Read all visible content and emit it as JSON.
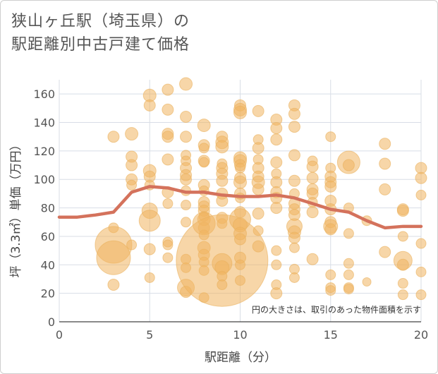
{
  "title_lines": [
    "狭山ヶ丘駅（埼玉県）の",
    "駅距離別中古戸建て価格"
  ],
  "colors": {
    "bubble": "#f0b560",
    "bubble_stroke": "#eab05e",
    "line": "#d4725c",
    "grid": "#d8dde6",
    "axis_text": "#555555"
  },
  "chart_data": {
    "type": "scatter",
    "title": "狭山ヶ丘駅（埼玉県）の駅距離別中古戸建て価格",
    "xlabel": "駅距離（分）",
    "ylabel": "坪（3.3㎡）単価（万円）",
    "xlim": [
      0,
      20
    ],
    "ylim": [
      0,
      170
    ],
    "xticks": [
      0,
      5,
      10,
      15,
      20
    ],
    "yticks": [
      0,
      20,
      40,
      60,
      80,
      100,
      120,
      140,
      160
    ],
    "grid": true,
    "note": "円の大きさは、取引のあった物件面積を示す",
    "bubbles": [
      {
        "x": 3,
        "y": 130,
        "s": 8
      },
      {
        "x": 3,
        "y": 66,
        "s": 7
      },
      {
        "x": 3,
        "y": 54,
        "s": 26
      },
      {
        "x": 3,
        "y": 45,
        "s": 24
      },
      {
        "x": 3,
        "y": 26,
        "s": 8
      },
      {
        "x": 4,
        "y": 132,
        "s": 9
      },
      {
        "x": 4,
        "y": 116,
        "s": 8
      },
      {
        "x": 4,
        "y": 110,
        "s": 8
      },
      {
        "x": 4,
        "y": 100,
        "s": 8
      },
      {
        "x": 4,
        "y": 96,
        "s": 7
      },
      {
        "x": 4,
        "y": 54,
        "s": 7
      },
      {
        "x": 5,
        "y": 159,
        "s": 9
      },
      {
        "x": 5,
        "y": 152,
        "s": 8
      },
      {
        "x": 5,
        "y": 106,
        "s": 9
      },
      {
        "x": 5,
        "y": 102,
        "s": 8
      },
      {
        "x": 5,
        "y": 96,
        "s": 7
      },
      {
        "x": 5,
        "y": 78,
        "s": 11
      },
      {
        "x": 5,
        "y": 71,
        "s": 15
      },
      {
        "x": 5,
        "y": 51,
        "s": 8
      },
      {
        "x": 5,
        "y": 31,
        "s": 7
      },
      {
        "x": 6,
        "y": 163,
        "s": 8
      },
      {
        "x": 6,
        "y": 149,
        "s": 8
      },
      {
        "x": 6,
        "y": 132,
        "s": 8
      },
      {
        "x": 6,
        "y": 130,
        "s": 8
      },
      {
        "x": 6,
        "y": 114,
        "s": 8
      },
      {
        "x": 6,
        "y": 91,
        "s": 8
      },
      {
        "x": 6,
        "y": 83,
        "s": 7
      },
      {
        "x": 6,
        "y": 56,
        "s": 7
      },
      {
        "x": 6,
        "y": 54,
        "s": 7
      },
      {
        "x": 6,
        "y": 45,
        "s": 7
      },
      {
        "x": 7,
        "y": 167,
        "s": 9
      },
      {
        "x": 7,
        "y": 144,
        "s": 8
      },
      {
        "x": 7,
        "y": 130,
        "s": 8
      },
      {
        "x": 7,
        "y": 117,
        "s": 7
      },
      {
        "x": 7,
        "y": 113,
        "s": 7
      },
      {
        "x": 7,
        "y": 108,
        "s": 8
      },
      {
        "x": 7,
        "y": 103,
        "s": 8
      },
      {
        "x": 7,
        "y": 100,
        "s": 8
      },
      {
        "x": 7,
        "y": 92,
        "s": 7
      },
      {
        "x": 7,
        "y": 82,
        "s": 7
      },
      {
        "x": 7,
        "y": 70,
        "s": 7
      },
      {
        "x": 7,
        "y": 44,
        "s": 7
      },
      {
        "x": 7,
        "y": 38,
        "s": 7
      },
      {
        "x": 7,
        "y": 24,
        "s": 12
      },
      {
        "x": 7,
        "y": 21,
        "s": 8
      },
      {
        "x": 8,
        "y": 138,
        "s": 9
      },
      {
        "x": 8,
        "y": 124,
        "s": 8
      },
      {
        "x": 8,
        "y": 122,
        "s": 7
      },
      {
        "x": 8,
        "y": 113,
        "s": 8
      },
      {
        "x": 8,
        "y": 112,
        "s": 7
      },
      {
        "x": 8,
        "y": 96,
        "s": 8
      },
      {
        "x": 8,
        "y": 92,
        "s": 7
      },
      {
        "x": 8,
        "y": 84,
        "s": 8
      },
      {
        "x": 8,
        "y": 81,
        "s": 8
      },
      {
        "x": 8,
        "y": 78,
        "s": 8
      },
      {
        "x": 8,
        "y": 74,
        "s": 7
      },
      {
        "x": 8,
        "y": 72,
        "s": 9
      },
      {
        "x": 8,
        "y": 69,
        "s": 16
      },
      {
        "x": 8,
        "y": 66,
        "s": 8
      },
      {
        "x": 8,
        "y": 61,
        "s": 7
      },
      {
        "x": 8,
        "y": 52,
        "s": 9
      },
      {
        "x": 8,
        "y": 47,
        "s": 8
      },
      {
        "x": 8,
        "y": 42,
        "s": 7
      },
      {
        "x": 8,
        "y": 36,
        "s": 7
      },
      {
        "x": 8,
        "y": 17,
        "s": 7
      },
      {
        "x": 9,
        "y": 130,
        "s": 8
      },
      {
        "x": 9,
        "y": 126,
        "s": 9
      },
      {
        "x": 9,
        "y": 123,
        "s": 9
      },
      {
        "x": 9,
        "y": 111,
        "s": 7
      },
      {
        "x": 9,
        "y": 108,
        "s": 8
      },
      {
        "x": 9,
        "y": 104,
        "s": 8
      },
      {
        "x": 9,
        "y": 99,
        "s": 8
      },
      {
        "x": 9,
        "y": 90,
        "s": 8
      },
      {
        "x": 9,
        "y": 85,
        "s": 8
      },
      {
        "x": 9,
        "y": 73,
        "s": 8
      },
      {
        "x": 9,
        "y": 69,
        "s": 7
      },
      {
        "x": 9,
        "y": 43,
        "s": 65
      },
      {
        "x": 9,
        "y": 41,
        "s": 14
      },
      {
        "x": 9,
        "y": 38,
        "s": 10
      },
      {
        "x": 9,
        "y": 32,
        "s": 7
      },
      {
        "x": 9,
        "y": 26,
        "s": 7
      },
      {
        "x": 10,
        "y": 152,
        "s": 8
      },
      {
        "x": 10,
        "y": 149,
        "s": 9
      },
      {
        "x": 10,
        "y": 147,
        "s": 9
      },
      {
        "x": 10,
        "y": 115,
        "s": 9
      },
      {
        "x": 10,
        "y": 113,
        "s": 9
      },
      {
        "x": 10,
        "y": 110,
        "s": 8
      },
      {
        "x": 10,
        "y": 108,
        "s": 7
      },
      {
        "x": 10,
        "y": 101,
        "s": 8
      },
      {
        "x": 10,
        "y": 98,
        "s": 9
      },
      {
        "x": 10,
        "y": 90,
        "s": 8
      },
      {
        "x": 10,
        "y": 87,
        "s": 7
      },
      {
        "x": 10,
        "y": 77,
        "s": 8
      },
      {
        "x": 10,
        "y": 72,
        "s": 15
      },
      {
        "x": 10,
        "y": 68,
        "s": 10
      },
      {
        "x": 10,
        "y": 62,
        "s": 9
      },
      {
        "x": 10,
        "y": 58,
        "s": 8
      },
      {
        "x": 10,
        "y": 45,
        "s": 8
      },
      {
        "x": 10,
        "y": 40,
        "s": 7
      },
      {
        "x": 10,
        "y": 29,
        "s": 7
      },
      {
        "x": 11,
        "y": 148,
        "s": 8
      },
      {
        "x": 11,
        "y": 128,
        "s": 7
      },
      {
        "x": 11,
        "y": 122,
        "s": 8
      },
      {
        "x": 11,
        "y": 114,
        "s": 7
      },
      {
        "x": 11,
        "y": 108,
        "s": 8
      },
      {
        "x": 11,
        "y": 102,
        "s": 8
      },
      {
        "x": 11,
        "y": 98,
        "s": 9
      },
      {
        "x": 11,
        "y": 93,
        "s": 8
      },
      {
        "x": 11,
        "y": 76,
        "s": 8
      },
      {
        "x": 11,
        "y": 64,
        "s": 7
      },
      {
        "x": 11,
        "y": 53,
        "s": 8
      },
      {
        "x": 12,
        "y": 142,
        "s": 8
      },
      {
        "x": 12,
        "y": 136,
        "s": 8
      },
      {
        "x": 12,
        "y": 128,
        "s": 8
      },
      {
        "x": 12,
        "y": 112,
        "s": 8
      },
      {
        "x": 12,
        "y": 104,
        "s": 7
      },
      {
        "x": 12,
        "y": 98,
        "s": 8
      },
      {
        "x": 12,
        "y": 91,
        "s": 8
      },
      {
        "x": 12,
        "y": 87,
        "s": 8
      },
      {
        "x": 12,
        "y": 80,
        "s": 8
      },
      {
        "x": 12,
        "y": 50,
        "s": 7
      },
      {
        "x": 12,
        "y": 40,
        "s": 7
      },
      {
        "x": 12,
        "y": 26,
        "s": 7
      },
      {
        "x": 12,
        "y": 20,
        "s": 8
      },
      {
        "x": 13,
        "y": 152,
        "s": 8
      },
      {
        "x": 13,
        "y": 146,
        "s": 8
      },
      {
        "x": 13,
        "y": 137,
        "s": 8
      },
      {
        "x": 13,
        "y": 117,
        "s": 8
      },
      {
        "x": 13,
        "y": 99,
        "s": 8
      },
      {
        "x": 13,
        "y": 90,
        "s": 7
      },
      {
        "x": 13,
        "y": 83,
        "s": 8
      },
      {
        "x": 13,
        "y": 79,
        "s": 8
      },
      {
        "x": 13,
        "y": 75,
        "s": 8
      },
      {
        "x": 13,
        "y": 67,
        "s": 11
      },
      {
        "x": 13,
        "y": 63,
        "s": 9
      },
      {
        "x": 13,
        "y": 59,
        "s": 8
      },
      {
        "x": 13,
        "y": 52,
        "s": 7
      },
      {
        "x": 13,
        "y": 37,
        "s": 7
      },
      {
        "x": 13,
        "y": 31,
        "s": 7
      },
      {
        "x": 14,
        "y": 113,
        "s": 7
      },
      {
        "x": 14,
        "y": 109,
        "s": 8
      },
      {
        "x": 14,
        "y": 101,
        "s": 8
      },
      {
        "x": 14,
        "y": 93,
        "s": 8
      },
      {
        "x": 14,
        "y": 90,
        "s": 8
      },
      {
        "x": 14,
        "y": 84,
        "s": 7
      },
      {
        "x": 14,
        "y": 77,
        "s": 8
      },
      {
        "x": 14,
        "y": 44,
        "s": 8
      },
      {
        "x": 15,
        "y": 130,
        "s": 7
      },
      {
        "x": 15,
        "y": 108,
        "s": 7
      },
      {
        "x": 15,
        "y": 102,
        "s": 8
      },
      {
        "x": 15,
        "y": 98,
        "s": 8
      },
      {
        "x": 15,
        "y": 95,
        "s": 8
      },
      {
        "x": 15,
        "y": 85,
        "s": 8
      },
      {
        "x": 15,
        "y": 79,
        "s": 8
      },
      {
        "x": 15,
        "y": 70,
        "s": 8
      },
      {
        "x": 15,
        "y": 67,
        "s": 10
      },
      {
        "x": 15,
        "y": 65,
        "s": 8
      },
      {
        "x": 15,
        "y": 33,
        "s": 7
      },
      {
        "x": 15,
        "y": 24,
        "s": 7
      },
      {
        "x": 15,
        "y": 22,
        "s": 7
      },
      {
        "x": 16,
        "y": 112,
        "s": 16
      },
      {
        "x": 16,
        "y": 110,
        "s": 8
      },
      {
        "x": 16,
        "y": 80,
        "s": 7
      },
      {
        "x": 16,
        "y": 62,
        "s": 7
      },
      {
        "x": 16,
        "y": 41,
        "s": 7
      },
      {
        "x": 16,
        "y": 33,
        "s": 7
      },
      {
        "x": 16,
        "y": 24,
        "s": 7
      },
      {
        "x": 16,
        "y": 23,
        "s": 7
      },
      {
        "x": 17,
        "y": 71,
        "s": 7
      },
      {
        "x": 17,
        "y": 28,
        "s": 6
      },
      {
        "x": 18,
        "y": 125,
        "s": 8
      },
      {
        "x": 18,
        "y": 111,
        "s": 8
      },
      {
        "x": 18,
        "y": 93,
        "s": 8
      },
      {
        "x": 18,
        "y": 49,
        "s": 8
      },
      {
        "x": 19,
        "y": 79,
        "s": 8
      },
      {
        "x": 19,
        "y": 78,
        "s": 8
      },
      {
        "x": 19,
        "y": 60,
        "s": 7
      },
      {
        "x": 19,
        "y": 43,
        "s": 13
      },
      {
        "x": 19,
        "y": 40,
        "s": 8
      },
      {
        "x": 19,
        "y": 27,
        "s": 7
      },
      {
        "x": 19,
        "y": 19,
        "s": 7
      },
      {
        "x": 20,
        "y": 108,
        "s": 8
      },
      {
        "x": 20,
        "y": 101,
        "s": 8
      },
      {
        "x": 20,
        "y": 89,
        "s": 7
      },
      {
        "x": 20,
        "y": 55,
        "s": 7
      },
      {
        "x": 20,
        "y": 35,
        "s": 7
      },
      {
        "x": 20,
        "y": 19,
        "s": 7
      }
    ],
    "trend_line": {
      "x": [
        0,
        1,
        2,
        3,
        4,
        5,
        6,
        7,
        8,
        9,
        10,
        11,
        12,
        13,
        14,
        15,
        16,
        17,
        18,
        19,
        20
      ],
      "y": [
        73.5,
        73.5,
        75,
        77,
        91,
        95,
        94,
        91,
        91,
        89,
        88,
        88,
        89,
        87,
        83,
        79,
        77,
        71,
        66,
        67,
        67
      ]
    }
  }
}
